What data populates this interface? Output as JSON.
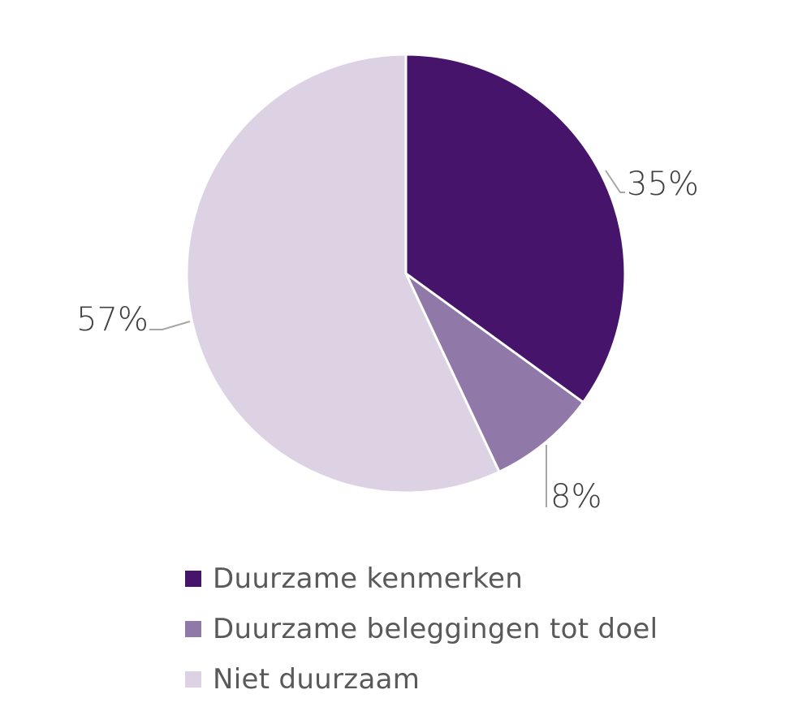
{
  "chart_data": {
    "type": "pie",
    "title": "",
    "categories": [
      "Duurzame kenmerken",
      "Duurzame beleggingen tot doel",
      "Niet duurzaam"
    ],
    "values": [
      35,
      8,
      57
    ],
    "labels": [
      "35%",
      "8%",
      "57%"
    ],
    "colors": [
      "#46146a",
      "#9078a8",
      "#dcd2e4"
    ],
    "start_angle": "12 o'clock, clockwise",
    "legend_position": "bottom"
  },
  "legend": {
    "items": [
      {
        "label": "Duurzame kenmerken",
        "color": "#46146a"
      },
      {
        "label": "Duurzame beleggingen tot doel",
        "color": "#9078a8"
      },
      {
        "label": "Niet duurzaam",
        "color": "#dcd2e4"
      }
    ]
  }
}
